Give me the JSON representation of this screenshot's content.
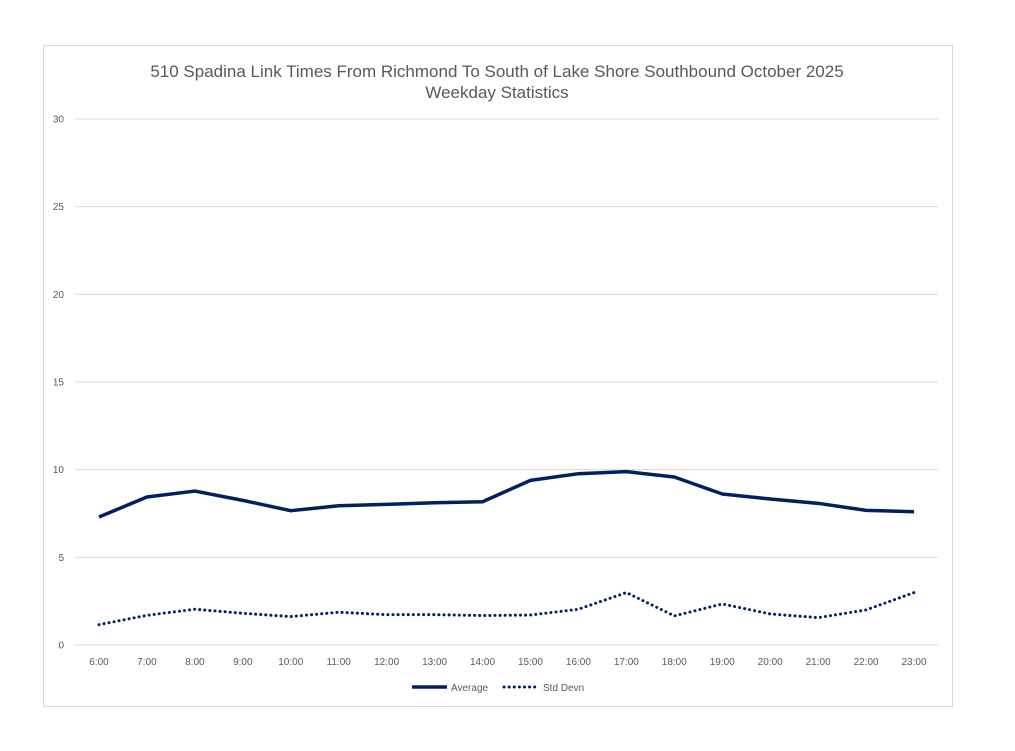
{
  "chart_data": {
    "type": "line",
    "title": "510 Spadina Link Times From Richmond To South of Lake Shore Southbound October 2025",
    "subtitle": "Weekday Statistics",
    "xlabel": "",
    "ylabel": "",
    "ylim": [
      0,
      30
    ],
    "yticks": [
      "0",
      "5",
      "10",
      "15",
      "20",
      "25",
      "30"
    ],
    "grid": true,
    "legend_position": "bottom",
    "categories": [
      "6:00",
      "7:00",
      "8:00",
      "9:00",
      "10:00",
      "11:00",
      "12:00",
      "13:00",
      "14:00",
      "15:00",
      "16:00",
      "17:00",
      "18:00",
      "19:00",
      "20:00",
      "21:00",
      "22:00",
      "23:00"
    ],
    "series": [
      {
        "name": "Average",
        "style": "solid",
        "color": "#002060",
        "values": [
          7.3,
          8.44,
          8.78,
          8.25,
          7.66,
          7.94,
          8.02,
          8.11,
          8.17,
          9.39,
          9.77,
          9.89,
          9.58,
          8.61,
          8.33,
          8.08,
          7.68,
          7.6
        ]
      },
      {
        "name": "Std Devn",
        "style": "dotted",
        "color": "#002060",
        "values": [
          1.16,
          1.69,
          2.04,
          1.81,
          1.62,
          1.87,
          1.73,
          1.73,
          1.68,
          1.71,
          2.04,
          2.99,
          1.66,
          2.34,
          1.77,
          1.56,
          2.0,
          2.99
        ]
      }
    ]
  }
}
